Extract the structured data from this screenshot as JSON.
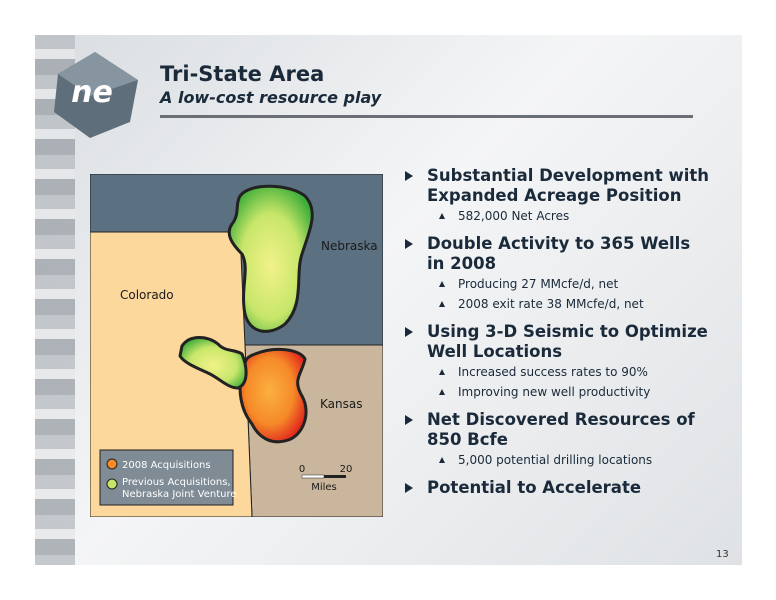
{
  "logo": "ne",
  "header": {
    "title": "Tri-State Area",
    "subtitle": "A low-cost resource play"
  },
  "map": {
    "states": [
      "Colorado",
      "Nebraska",
      "Kansas"
    ],
    "legend": [
      {
        "lines": [
          "2008 Acquisitions"
        ]
      },
      {
        "lines": [
          "Previous Acquisitions,",
          "Nebraska Joint Venture"
        ]
      }
    ],
    "scale": {
      "start": 0,
      "end": 20,
      "unit": "Miles"
    }
  },
  "bullets": [
    {
      "heading": [
        "Substantial Development with",
        "Expanded Acreage Position"
      ],
      "items": [
        "582,000 Net Acres"
      ]
    },
    {
      "heading": [
        "Double Activity to 365 Wells",
        "in 2008"
      ],
      "items": [
        "Producing 27 MMcfe/d, net",
        "2008 exit rate 38 MMcfe/d, net"
      ]
    },
    {
      "heading": [
        "Using 3-D Seismic to Optimize",
        "Well Locations"
      ],
      "items": [
        "Increased success rates to 90%",
        "Improving new well productivity"
      ]
    },
    {
      "heading": [
        "Net Discovered Resources of",
        "850 Bcfe"
      ],
      "items": [
        "5,000 potential drilling locations"
      ]
    },
    {
      "heading": [
        "Potential to Accelerate"
      ],
      "items": []
    }
  ],
  "page_number": "13"
}
